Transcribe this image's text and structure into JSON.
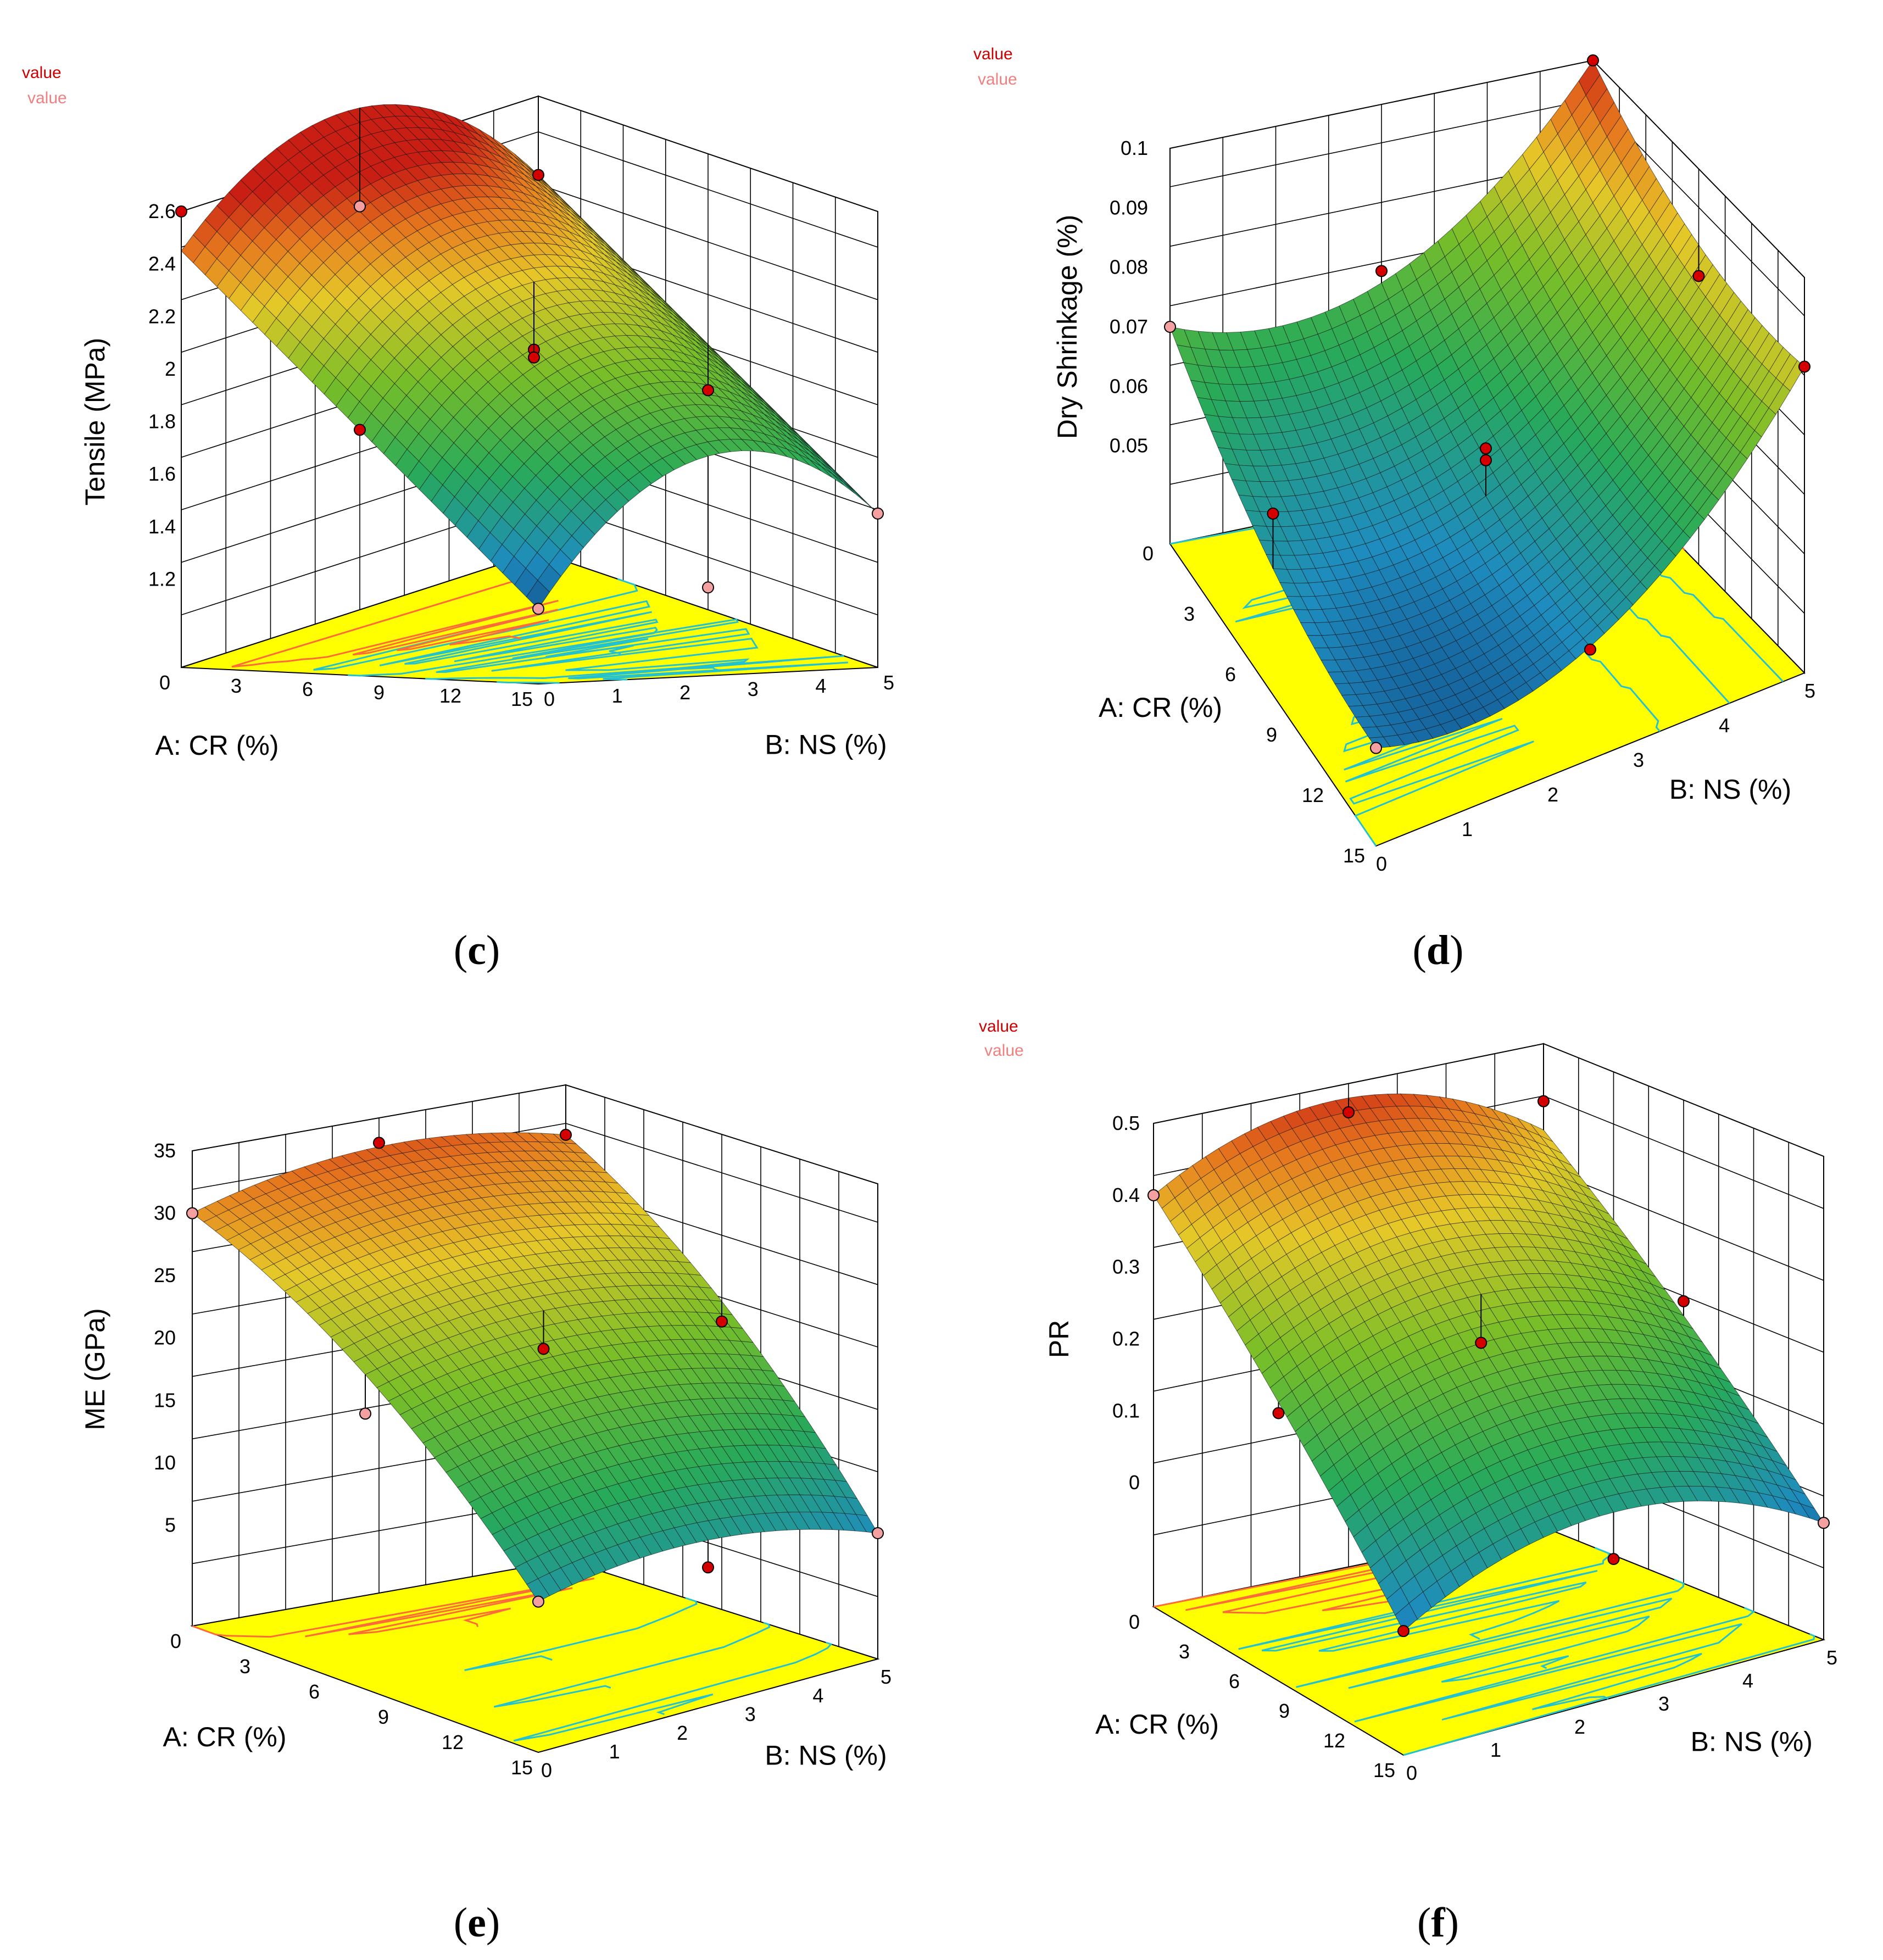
{
  "figure": {
    "design_points_legend": [
      "value",
      "value"
    ],
    "legend_colors": [
      "#cc0000",
      "#f08080"
    ]
  },
  "colors": {
    "plane": "#ffff00",
    "contour": "#22c2d0",
    "contour_warm": "#ff6a3a",
    "point_above": "#d40000",
    "point_below": "#f4a0a0",
    "grid": "#000000"
  },
  "chart_data": [
    {
      "id": "c",
      "type": "surface",
      "caption": "c",
      "zlabel": "Tensile (MPa)",
      "xlabel": "A: CR (%)",
      "ylabel": "B: NS (%)",
      "x_ticks": [
        "0",
        "3",
        "6",
        "9",
        "12",
        "15"
      ],
      "y_ticks": [
        "0",
        "1",
        "2",
        "3",
        "4",
        "5"
      ],
      "z_ticks": [
        "1.2",
        "1.4",
        "1.6",
        "1.8",
        "2",
        "2.2",
        "2.4",
        "2.6"
      ],
      "xlim": [
        0,
        15
      ],
      "ylim": [
        0,
        5
      ],
      "zlim": [
        1.0,
        2.6
      ],
      "corner_values": [
        {
          "A": 0,
          "B": 0,
          "z": 2.45
        },
        {
          "A": 0,
          "B": 5,
          "z": 2.3
        },
        {
          "A": 15,
          "B": 0,
          "z": 1.15
        },
        {
          "A": 15,
          "B": 5,
          "z": 1.45
        }
      ],
      "curvature": {
        "A": 0.0,
        "B": 1.0
      },
      "design_points": [
        {
          "A": 0,
          "B": 0,
          "z": 2.6,
          "above": true
        },
        {
          "A": 0,
          "B": 5,
          "z": 2.3,
          "above": true
        },
        {
          "A": 15,
          "B": 0,
          "z": 1.15,
          "above": false
        },
        {
          "A": 15,
          "B": 5,
          "z": 1.45,
          "above": false
        },
        {
          "A": 7.5,
          "B": 2.5,
          "z": 1.98,
          "above": true
        },
        {
          "A": 7.5,
          "B": 2.5,
          "z": 1.95,
          "above": true
        },
        {
          "A": 7.5,
          "B": 0,
          "z": 1.8,
          "above": true
        },
        {
          "A": 7.5,
          "B": 5,
          "z": 1.7,
          "above": true
        },
        {
          "A": 0,
          "B": 2.5,
          "z": 2.4,
          "above": false
        },
        {
          "A": 15,
          "B": 2.5,
          "z": 1.2,
          "above": false
        }
      ]
    },
    {
      "id": "d",
      "type": "surface",
      "caption": "d",
      "zlabel": "Dry Shrinkage (%)",
      "xlabel": "A: CR (%)",
      "ylabel": "B: NS (%)",
      "x_ticks": [
        "0",
        "3",
        "6",
        "9",
        "12",
        "15"
      ],
      "y_ticks": [
        "0",
        "1",
        "2",
        "3",
        "4",
        "5"
      ],
      "z_ticks": [
        "0.05",
        "0.06",
        "0.07",
        "0.08",
        "0.09",
        "0.1"
      ],
      "xlim": [
        0,
        15
      ],
      "ylim": [
        0,
        5
      ],
      "zlim": [
        0.04,
        0.1
      ],
      "corner_values": [
        {
          "A": 0,
          "B": 0,
          "z": 0.07
        },
        {
          "A": 0,
          "B": 5,
          "z": 0.1
        },
        {
          "A": 15,
          "B": 0,
          "z": 0.05
        },
        {
          "A": 15,
          "B": 5,
          "z": 0.085
        }
      ],
      "curvature": {
        "A": -0.35,
        "B": -1.0
      },
      "design_points": [
        {
          "A": 0,
          "B": 0,
          "z": 0.07,
          "above": false
        },
        {
          "A": 0,
          "B": 5,
          "z": 0.1,
          "above": true
        },
        {
          "A": 15,
          "B": 0,
          "z": 0.05,
          "above": false
        },
        {
          "A": 15,
          "B": 5,
          "z": 0.085,
          "above": true
        },
        {
          "A": 7.5,
          "B": 2.5,
          "z": 0.064,
          "above": true
        },
        {
          "A": 7.5,
          "B": 2.5,
          "z": 0.062,
          "above": true
        },
        {
          "A": 0,
          "B": 2.5,
          "z": 0.072,
          "above": true
        },
        {
          "A": 7.5,
          "B": 0,
          "z": 0.064,
          "above": true
        },
        {
          "A": 15,
          "B": 2.5,
          "z": 0.052,
          "above": true
        },
        {
          "A": 7.5,
          "B": 5,
          "z": 0.082,
          "above": true
        }
      ]
    },
    {
      "id": "e",
      "type": "surface",
      "caption": "e",
      "zlabel": "ME (GPa)",
      "xlabel": "A: CR (%)",
      "ylabel": "B: NS (%)",
      "x_ticks": [
        "0",
        "3",
        "6",
        "9",
        "12",
        "15"
      ],
      "y_ticks": [
        "0",
        "1",
        "2",
        "3",
        "4",
        "5"
      ],
      "z_ticks": [
        "5",
        "10",
        "15",
        "20",
        "25",
        "30",
        "35"
      ],
      "xlim": [
        0,
        15
      ],
      "ylim": [
        0,
        5
      ],
      "zlim": [
        0,
        35
      ],
      "corner_values": [
        {
          "A": 0,
          "B": 0,
          "z": 30
        },
        {
          "A": 0,
          "B": 5,
          "z": 31
        },
        {
          "A": 15,
          "B": 0,
          "z": 9
        },
        {
          "A": 15,
          "B": 5,
          "z": 7
        }
      ],
      "curvature": {
        "A": 0.3,
        "B": 0.25
      },
      "design_points": [
        {
          "A": 0,
          "B": 0,
          "z": 30,
          "above": false
        },
        {
          "A": 0,
          "B": 5,
          "z": 31,
          "above": true
        },
        {
          "A": 15,
          "B": 0,
          "z": 9,
          "above": false
        },
        {
          "A": 15,
          "B": 5,
          "z": 7,
          "above": false
        },
        {
          "A": 7.5,
          "B": 2.5,
          "z": 21,
          "above": true
        },
        {
          "A": 0,
          "B": 2.5,
          "z": 33,
          "above": true
        },
        {
          "A": 7.5,
          "B": 0,
          "z": 19,
          "above": false
        },
        {
          "A": 7.5,
          "B": 5,
          "z": 20,
          "above": true
        },
        {
          "A": 15,
          "B": 2.5,
          "z": 8,
          "above": true
        }
      ]
    },
    {
      "id": "f",
      "type": "surface",
      "caption": "f",
      "zlabel": "PR",
      "xlabel": "A: CR (%)",
      "ylabel": "B: NS (%)",
      "x_ticks": [
        "0",
        "3",
        "6",
        "9",
        "12",
        "15"
      ],
      "y_ticks": [
        "0",
        "1",
        "2",
        "3",
        "4",
        "5"
      ],
      "z_ticks": [
        "0",
        "0.1",
        "0.2",
        "0.3",
        "0.4",
        "0.5"
      ],
      "xlim": [
        0,
        15
      ],
      "ylim": [
        0,
        5
      ],
      "zlim": [
        -0.1,
        0.5
      ],
      "corner_values": [
        {
          "A": 0,
          "B": 0,
          "z": 0.4
        },
        {
          "A": 0,
          "B": 5,
          "z": 0.38
        },
        {
          "A": 15,
          "B": 0,
          "z": 0.0
        },
        {
          "A": 15,
          "B": 5,
          "z": -0.01
        }
      ],
      "curvature": {
        "A": 0.1,
        "B": 0.6
      },
      "design_points": [
        {
          "A": 0,
          "B": 0,
          "z": 0.4,
          "above": false
        },
        {
          "A": 0,
          "B": 5,
          "z": 0.42,
          "above": true
        },
        {
          "A": 15,
          "B": 0,
          "z": 0.0,
          "above": true
        },
        {
          "A": 15,
          "B": 5,
          "z": -0.01,
          "above": false
        },
        {
          "A": 7.5,
          "B": 2.5,
          "z": 0.23,
          "above": true
        },
        {
          "A": 0,
          "B": 2.5,
          "z": 0.46,
          "above": true
        },
        {
          "A": 7.5,
          "B": 0,
          "z": 0.2,
          "above": true
        },
        {
          "A": 7.5,
          "B": 5,
          "z": 0.22,
          "above": true
        },
        {
          "A": 15,
          "B": 2.5,
          "z": 0.02,
          "above": true
        }
      ]
    }
  ]
}
